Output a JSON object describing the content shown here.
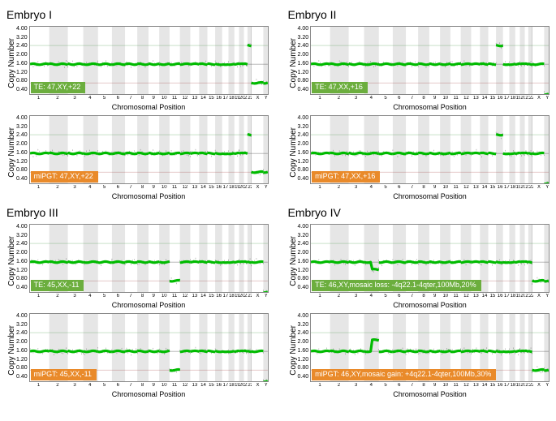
{
  "axis": {
    "ylabel": "Copy Number",
    "xlabel": "Chromosomal Position",
    "ylim": [
      0.4,
      4.0
    ],
    "yticks": [
      "4.00",
      "3.20",
      "2.40",
      "2.00",
      "1.60",
      "1.20",
      "0.80",
      "0.40"
    ],
    "xticks": [
      "1",
      "2",
      "3",
      "4",
      "5",
      "6",
      "7",
      "8",
      "9",
      "10",
      "11",
      "12",
      "13",
      "14",
      "15",
      "16",
      "17",
      "18",
      "19",
      "20",
      "21",
      "22",
      "X",
      "Y"
    ],
    "grid_light": "#f3f3f3",
    "band_color": "#e6e6e6",
    "baseline2_color": "#333333",
    "cn1_line_color": "#9a2e2e",
    "cn3_line_color": "#2e8a2e",
    "line_color": "#00bb00",
    "dot_color": "#111111",
    "chrom_widths": [
      9.1,
      8.8,
      7.3,
      7.0,
      6.6,
      6.2,
      5.8,
      5.3,
      5.1,
      4.9,
      4.9,
      4.9,
      4.2,
      3.9,
      3.7,
      3.3,
      3.0,
      2.8,
      2.2,
      2.3,
      1.7,
      1.8,
      5.7,
      2.1
    ]
  },
  "badge_colors": {
    "te": "#6cae3e",
    "mi": "#e98a2a"
  },
  "panels": [
    {
      "title": "Embryo I",
      "rows": [
        {
          "badge": "TE: 47,XY,+22",
          "badge_kind": "te",
          "overrides": {
            "22": 3.0,
            "Y": 1.0,
            "X": 1.0
          }
        },
        {
          "badge": "miPGT: 47,XY,+22",
          "badge_kind": "mi",
          "overrides": {
            "22": 3.0,
            "Y": 1.0,
            "X": 1.0
          }
        }
      ]
    },
    {
      "title": "Embryo II",
      "rows": [
        {
          "badge": "TE: 47,XX,+16",
          "badge_kind": "te",
          "overrides": {
            "16": 3.0,
            "Y": 0.4
          }
        },
        {
          "badge": "miPGT: 47,XX,+16",
          "badge_kind": "mi",
          "overrides": {
            "16": 3.0,
            "Y": 0.4
          }
        }
      ]
    },
    {
      "title": "Embryo III",
      "rows": [
        {
          "badge": "TE: 45,XX,-11",
          "badge_kind": "te",
          "overrides": {
            "11": 1.0,
            "Y": 0.4
          }
        },
        {
          "badge": "miPGT: 45,XX,-11",
          "badge_kind": "mi",
          "overrides": {
            "11": 1.0,
            "Y": 0.4
          }
        }
      ]
    },
    {
      "title": "Embryo IV",
      "rows": [
        {
          "badge": "TE: 46,XY,mosaic loss: -4q22.1-4qter,100Mb,20%",
          "badge_kind": "te",
          "overrides": {
            "Y": 1.0,
            "X": 1.0
          },
          "partial": {
            "chrom": "4",
            "from": 0.45,
            "to": 1.0,
            "cn": 1.6
          }
        },
        {
          "badge": "miPGT: 46,XY,mosaic gain: +4q22.1-4qter,100Mb,30%",
          "badge_kind": "mi",
          "overrides": {
            "Y": 1.0,
            "X": 1.0
          },
          "partial": {
            "chrom": "4",
            "from": 0.45,
            "to": 1.0,
            "cn": 2.6
          }
        }
      ]
    }
  ]
}
